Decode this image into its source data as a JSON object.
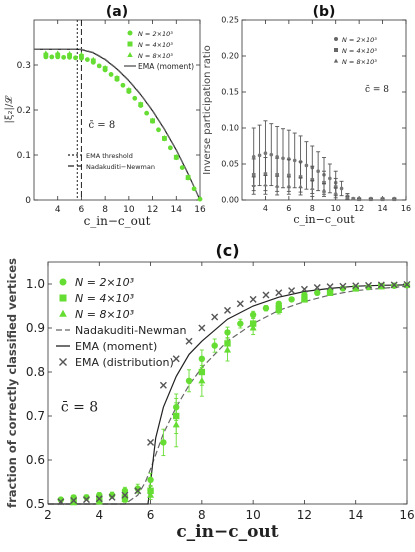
{
  "chart_data": [
    {
      "panel_label": "(a)",
      "type": "scatter",
      "ylabel": "|ξ₂|/𝓛",
      "xlabel": "c_in−c_out",
      "xlim": [
        2,
        16
      ],
      "ylim": [
        0,
        0.4
      ],
      "xticks": [
        "4",
        "6",
        "8",
        "10",
        "12",
        "14",
        "16"
      ],
      "yticks": [
        "0",
        "0.1",
        "0.2",
        "0.3"
      ],
      "annotation": "c̄ = 8",
      "legend_top": [
        {
          "label": "N = 2×10³",
          "marker": "circle",
          "color": "#66dd33"
        },
        {
          "label": "N = 4×10³",
          "marker": "square",
          "color": "#66dd33"
        },
        {
          "label": "N = 8×10³",
          "marker": "triangle",
          "color": "#66dd33"
        },
        {
          "label": "EMA (moment)",
          "style": "solid",
          "color": "#444444"
        }
      ],
      "legend_bottom": [
        {
          "label": "EMA threshold",
          "style": "dotted",
          "color": "#222222"
        },
        {
          "label": "Nadakuditi−Newman",
          "style": "dashed",
          "color": "#222222"
        }
      ],
      "vlines": [
        {
          "x": 5.65,
          "style": "dotted"
        },
        {
          "x": 6.0,
          "style": "dashed"
        }
      ],
      "series": [
        {
          "marker": "circle",
          "x": [
            3,
            3.5,
            4,
            4.5,
            5,
            5.5,
            6,
            6.5,
            7,
            7.5,
            8,
            8.5,
            9,
            9.5,
            10,
            10.5,
            11,
            11.5,
            12,
            12.5,
            13,
            13.5,
            14,
            14.5,
            15,
            15.5,
            16
          ],
          "y": [
            0.318,
            0.318,
            0.318,
            0.317,
            0.317,
            0.316,
            0.315,
            0.312,
            0.306,
            0.298,
            0.289,
            0.279,
            0.268,
            0.255,
            0.241,
            0.226,
            0.21,
            0.193,
            0.175,
            0.156,
            0.136,
            0.116,
            0.094,
            0.072,
            0.049,
            0.025,
            0.002
          ]
        },
        {
          "marker": "square",
          "x": [
            3,
            4,
            5,
            6,
            7,
            8,
            9,
            10,
            11,
            12,
            13,
            14,
            15
          ],
          "y": [
            0.322,
            0.322,
            0.321,
            0.319,
            0.309,
            0.292,
            0.27,
            0.243,
            0.212,
            0.176,
            0.137,
            0.095,
            0.05
          ]
        },
        {
          "marker": "triangle",
          "x": [
            3,
            4,
            5,
            6,
            7,
            8,
            9,
            10,
            11,
            12,
            13,
            14,
            15
          ],
          "y": [
            0.326,
            0.326,
            0.325,
            0.323,
            0.312,
            0.294,
            0.272,
            0.245,
            0.213,
            0.177,
            0.138,
            0.096,
            0.05
          ]
        }
      ],
      "lines": [
        {
          "name": "EMA (moment)",
          "style": "solid",
          "x": [
            2,
            5.65,
            6,
            7,
            8,
            9,
            10,
            11,
            12,
            13,
            14,
            15,
            16
          ],
          "y": [
            0.335,
            0.335,
            0.334,
            0.327,
            0.312,
            0.291,
            0.265,
            0.234,
            0.198,
            0.157,
            0.111,
            0.058,
            0.0
          ]
        },
        {
          "name": "Nadakuditi−Newman",
          "style": "dashed",
          "x": [
            2,
            6,
            7,
            8,
            9,
            10,
            11,
            12,
            13,
            14,
            15,
            16
          ],
          "y": [
            0.335,
            0.335,
            0.328,
            0.313,
            0.292,
            0.266,
            0.235,
            0.199,
            0.158,
            0.112,
            0.059,
            0.0
          ]
        }
      ]
    },
    {
      "panel_label": "(b)",
      "type": "scatter",
      "ylabel": "Inverse participation ratio",
      "xlabel": "c_in−c_out",
      "xlim": [
        2,
        16
      ],
      "ylim": [
        0,
        0.25
      ],
      "xticks": [
        "4",
        "6",
        "8",
        "10",
        "12",
        "14",
        "16"
      ],
      "yticks": [
        "0.00",
        "0.05",
        "0.10",
        "0.15",
        "0.20",
        "0.25"
      ],
      "annotation": "c̄ = 8",
      "legend": [
        {
          "label": "N = 2×10³",
          "marker": "circle"
        },
        {
          "label": "N = 4×10³",
          "marker": "square"
        },
        {
          "label": "N = 8×10³",
          "marker": "triangle"
        }
      ],
      "series": [
        {
          "marker": "circle",
          "x": [
            3,
            3.5,
            4,
            4.5,
            5,
            5.5,
            6,
            6.5,
            7,
            7.5,
            8,
            8.5,
            9,
            9.5,
            10,
            10.5,
            11,
            11.5,
            12,
            13,
            14,
            15
          ],
          "y": [
            0.06,
            0.062,
            0.065,
            0.063,
            0.06,
            0.058,
            0.057,
            0.055,
            0.053,
            0.048,
            0.045,
            0.04,
            0.035,
            0.03,
            0.024,
            0.016,
            0.003,
            0.002,
            0.002,
            0.002,
            0.002,
            0.002
          ],
          "err": [
            0.04,
            0.042,
            0.045,
            0.043,
            0.042,
            0.041,
            0.04,
            0.038,
            0.036,
            0.033,
            0.03,
            0.027,
            0.024,
            0.02,
            0.016,
            0.01,
            0.002,
            0.001,
            0.001,
            0.001,
            0.001,
            0.001
          ]
        },
        {
          "marker": "square",
          "x": [
            3,
            4,
            5,
            6,
            7,
            8,
            9,
            10,
            11,
            12,
            13,
            14,
            15
          ],
          "y": [
            0.035,
            0.036,
            0.035,
            0.034,
            0.032,
            0.028,
            0.024,
            0.018,
            0.005,
            0.001,
            0.001,
            0.001,
            0.001
          ],
          "err": [
            0.022,
            0.023,
            0.023,
            0.022,
            0.021,
            0.019,
            0.016,
            0.012,
            0.004,
            0.001,
            0.001,
            0.001,
            0.001
          ]
        },
        {
          "marker": "triangle",
          "x": [
            3,
            4,
            5,
            6,
            7,
            8,
            9,
            10,
            11,
            12,
            13,
            14,
            15
          ],
          "y": [
            0.02,
            0.021,
            0.02,
            0.02,
            0.019,
            0.016,
            0.014,
            0.01,
            0.003,
            0.001,
            0.001,
            0.001,
            0.001
          ],
          "err": [
            0.012,
            0.013,
            0.013,
            0.012,
            0.012,
            0.011,
            0.009,
            0.007,
            0.002,
            0.001,
            0.001,
            0.001,
            0.001
          ]
        }
      ]
    },
    {
      "panel_label": "(c)",
      "type": "scatter",
      "ylabel": "fraction of correctly classified vertices",
      "xlabel": "c_in−c_out",
      "xlim": [
        2,
        16
      ],
      "ylim": [
        0.5,
        1.05
      ],
      "xticks": [
        "2",
        "4",
        "6",
        "8",
        "10",
        "12",
        "14",
        "16"
      ],
      "yticks": [
        "0.5",
        "0.6",
        "0.7",
        "0.8",
        "0.9",
        "1.0"
      ],
      "annotation": "c̄ = 8",
      "legend": [
        {
          "label": "N = 2×10³",
          "marker": "circle",
          "color": "#66dd33"
        },
        {
          "label": "N = 4×10³",
          "marker": "square",
          "color": "#66dd33"
        },
        {
          "label": "N = 8×10³",
          "marker": "triangle",
          "color": "#66dd33"
        },
        {
          "label": "Nadakuditi-Newman",
          "style": "dashed",
          "color": "#666666"
        },
        {
          "label": "EMA (moment)",
          "style": "solid",
          "color": "#222222"
        },
        {
          "label": "EMA (distribution)",
          "marker": "x",
          "color": "#555555"
        }
      ],
      "series": [
        {
          "marker": "circle",
          "x": [
            2.5,
            3,
            3.5,
            4,
            4.5,
            5,
            5.5,
            6,
            6.5,
            7,
            7.5,
            8,
            8.5,
            9,
            9.5,
            10,
            10.5,
            11,
            11.5,
            12,
            12.5,
            13,
            13.5,
            14,
            14.5,
            15,
            15.5,
            16
          ],
          "y": [
            0.51,
            0.515,
            0.515,
            0.52,
            0.52,
            0.53,
            0.535,
            0.555,
            0.64,
            0.72,
            0.78,
            0.83,
            0.86,
            0.89,
            0.91,
            0.93,
            0.945,
            0.955,
            0.965,
            0.975,
            0.98,
            0.985,
            0.99,
            0.99,
            0.993,
            0.995,
            0.996,
            0.997
          ],
          "err": [
            0.005,
            0.005,
            0.006,
            0.006,
            0.007,
            0.008,
            0.01,
            0.015,
            0.03,
            0.03,
            0.025,
            0.02,
            0.015,
            0.012,
            0.01,
            0.008,
            0.006,
            0.005,
            0.004,
            0.004,
            0.003,
            0.003,
            0.002,
            0.002,
            0.002,
            0.002,
            0.002,
            0.002
          ]
        },
        {
          "marker": "square",
          "x": [
            3,
            4,
            5,
            6,
            7,
            8,
            9,
            10,
            11,
            12,
            13,
            14,
            15
          ],
          "y": [
            0.505,
            0.51,
            0.515,
            0.53,
            0.7,
            0.8,
            0.865,
            0.91,
            0.945,
            0.965,
            0.98,
            0.99,
            0.995
          ],
          "err": [
            0.005,
            0.005,
            0.007,
            0.012,
            0.04,
            0.03,
            0.02,
            0.012,
            0.008,
            0.005,
            0.004,
            0.003,
            0.002
          ]
        },
        {
          "marker": "triangle",
          "x": [
            3,
            4,
            5,
            6,
            7,
            8,
            9,
            10,
            11,
            12,
            13,
            14,
            15
          ],
          "y": [
            0.503,
            0.505,
            0.51,
            0.52,
            0.68,
            0.78,
            0.85,
            0.9,
            0.94,
            0.965,
            0.98,
            0.99,
            0.995
          ],
          "err": [
            0.004,
            0.005,
            0.006,
            0.01,
            0.05,
            0.035,
            0.025,
            0.015,
            0.008,
            0.005,
            0.004,
            0.003,
            0.002
          ]
        }
      ],
      "lines": [
        {
          "name": "Nadakuditi-Newman",
          "style": "dashed",
          "x": [
            2,
            5,
            5.5,
            5.8,
            6,
            6.5,
            7,
            7.5,
            8,
            9,
            10,
            11,
            12,
            13,
            14,
            15,
            16
          ],
          "y": [
            0.5,
            0.5,
            0.52,
            0.55,
            0.58,
            0.66,
            0.72,
            0.77,
            0.81,
            0.87,
            0.91,
            0.94,
            0.96,
            0.975,
            0.985,
            0.99,
            0.995
          ]
        },
        {
          "name": "EMA (moment)",
          "style": "solid",
          "x": [
            2,
            5.9,
            6.0,
            6.2,
            6.5,
            7,
            7.5,
            8,
            9,
            10,
            11,
            12,
            13,
            14,
            15,
            16
          ],
          "y": [
            0.5,
            0.5,
            0.55,
            0.65,
            0.72,
            0.79,
            0.84,
            0.87,
            0.92,
            0.95,
            0.97,
            0.983,
            0.99,
            0.995,
            0.997,
            0.998
          ]
        }
      ],
      "x_markers": {
        "name": "EMA (distribution)",
        "x": [
          2.5,
          3,
          3.5,
          4,
          4.5,
          5,
          5.5,
          6,
          6.5,
          7,
          7.5,
          8,
          8.5,
          9,
          9.5,
          10,
          10.5,
          11,
          11.5,
          12,
          12.5,
          13,
          13.5,
          14,
          14.5,
          15,
          15.5,
          16
        ],
        "y": [
          0.505,
          0.508,
          0.51,
          0.512,
          0.515,
          0.52,
          0.53,
          0.64,
          0.77,
          0.83,
          0.87,
          0.9,
          0.925,
          0.94,
          0.955,
          0.965,
          0.975,
          0.98,
          0.985,
          0.988,
          0.992,
          0.994,
          0.995,
          0.996,
          0.997,
          0.998,
          0.998,
          0.999
        ]
      }
    }
  ]
}
